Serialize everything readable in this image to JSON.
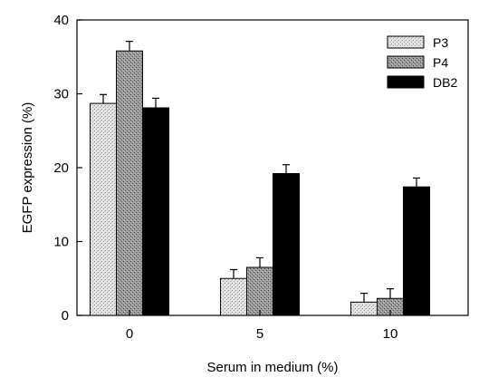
{
  "chart_data": {
    "type": "bar",
    "title": "",
    "xlabel": "Serum in medium (%)",
    "ylabel": "EGFP expression (%)",
    "categories": [
      "0",
      "5",
      "10"
    ],
    "ylim": [
      0,
      40
    ],
    "yticks": [
      "0",
      "10",
      "20",
      "30",
      "40"
    ],
    "grid": false,
    "legend_position": "top-right",
    "series": [
      {
        "name": "P3",
        "values": [
          28.7,
          5.0,
          1.8
        ],
        "errors": [
          1.2,
          1.2,
          1.2
        ],
        "color": "#d4d4d4",
        "pattern": "light-stipple"
      },
      {
        "name": "P4",
        "values": [
          35.8,
          6.5,
          2.3
        ],
        "errors": [
          1.3,
          1.3,
          1.3
        ],
        "color": "#8a8a8a",
        "pattern": "dark-stipple"
      },
      {
        "name": "DB2",
        "values": [
          28.1,
          19.2,
          17.4
        ],
        "errors": [
          1.3,
          1.2,
          1.2
        ],
        "color": "#000000",
        "pattern": "solid"
      }
    ]
  }
}
